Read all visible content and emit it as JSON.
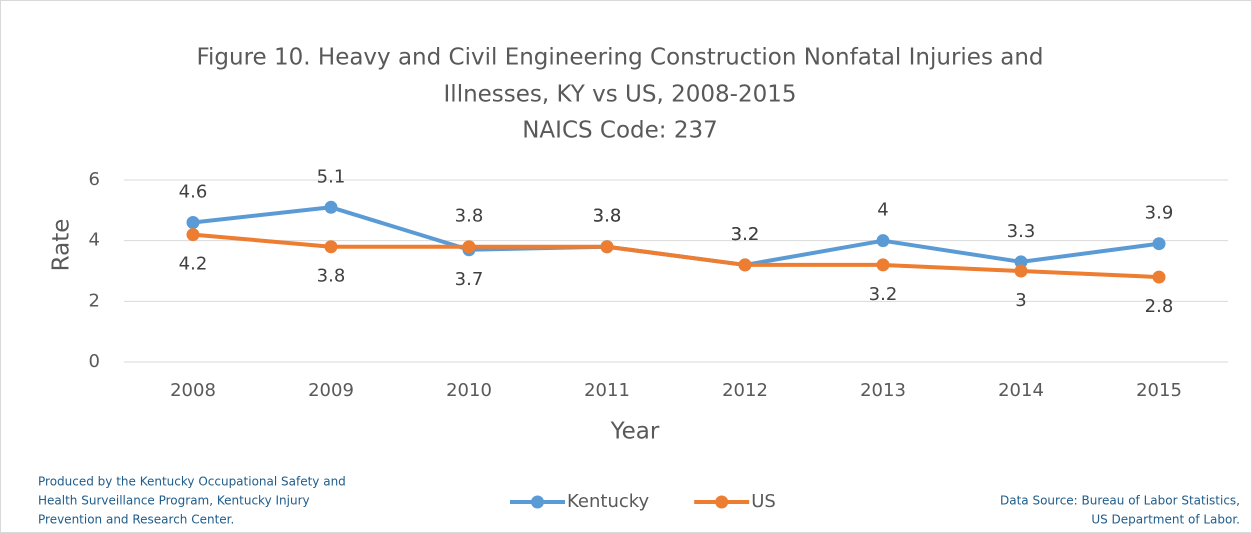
{
  "chart_data": {
    "type": "line",
    "title": [
      "Figure 10. Heavy and Civil Engineering Construction Nonfatal Injuries and",
      "Illnesses, KY vs US, 2008-2015"
    ],
    "subtitle": "NAICS Code: 237",
    "x_label": "Year",
    "y_label": "Rate",
    "categories": [
      "2008",
      "2009",
      "2010",
      "2011",
      "2012",
      "2013",
      "2014",
      "2015"
    ],
    "series": [
      {
        "name": "Kentucky",
        "color": "#5b9bd5",
        "values": [
          4.6,
          5.1,
          3.7,
          3.8,
          3.2,
          4,
          3.3,
          3.9
        ]
      },
      {
        "name": "US",
        "color": "#ed7d31",
        "values": [
          4.2,
          3.8,
          3.8,
          3.8,
          3.2,
          3.2,
          3,
          2.8
        ]
      }
    ],
    "ylim": [
      0,
      6
    ],
    "yticks": [
      0,
      2,
      4,
      6
    ],
    "grid": true,
    "legend": "bottom",
    "footnote_left": [
      "Produced by the Kentucky Occupational Safety and",
      "Health Surveillance Program, Kentucky Injury",
      "Prevention and Research Center."
    ],
    "footnote_right": [
      "Data Source: Bureau of Labor Statistics,",
      "US Department of Labor."
    ]
  }
}
